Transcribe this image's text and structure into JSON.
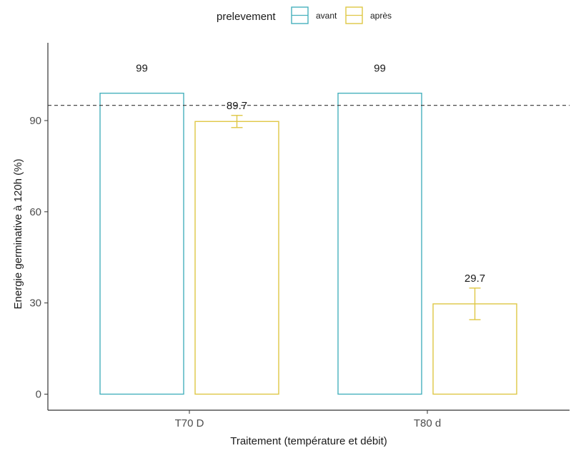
{
  "chart_data": {
    "type": "bar",
    "title": "",
    "xlabel": "Traitement (température et débit)",
    "ylabel": "Energie germinative à 120h (%)",
    "categories": [
      "T70 D",
      "T80 d"
    ],
    "series": [
      {
        "name": "avant",
        "color": "#46b1bd",
        "values": [
          99,
          99
        ],
        "errors": [
          null,
          null
        ],
        "labels": [
          "99",
          "99"
        ]
      },
      {
        "name": "après",
        "color": "#dfc745",
        "values": [
          89.7,
          29.7
        ],
        "errors": [
          2.0,
          5.2
        ],
        "labels": [
          "89.7",
          "29.7"
        ]
      }
    ],
    "reference_line": {
      "y": 95,
      "style": "dashed",
      "color": "#333333"
    },
    "yticks": [
      0,
      30,
      60,
      90
    ],
    "ylim": [
      -5,
      115
    ],
    "grid": false,
    "legend": {
      "title": "prelevement",
      "position": "top",
      "entries": [
        "avant",
        "après"
      ]
    }
  }
}
